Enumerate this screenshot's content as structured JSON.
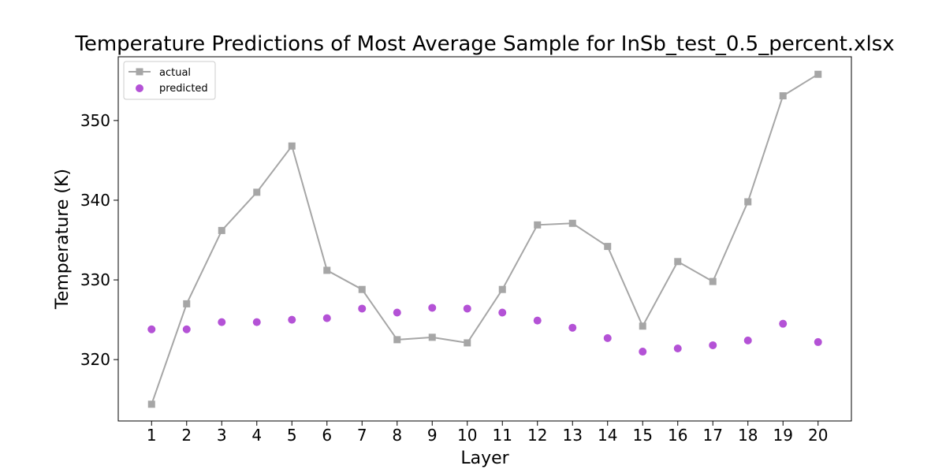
{
  "chart_data": {
    "type": "line",
    "title": "Temperature Predictions of Most Average Sample for InSb_test_0.5_percent.xlsx",
    "xlabel": "Layer",
    "ylabel": "Temperature (K)",
    "x": [
      1,
      2,
      3,
      4,
      5,
      6,
      7,
      8,
      9,
      10,
      11,
      12,
      13,
      14,
      15,
      16,
      17,
      18,
      19,
      20
    ],
    "xticks": [
      "1",
      "2",
      "3",
      "4",
      "5",
      "6",
      "7",
      "8",
      "9",
      "10",
      "11",
      "12",
      "13",
      "14",
      "15",
      "16",
      "17",
      "18",
      "19",
      "20"
    ],
    "yticks": [
      320,
      330,
      340,
      350
    ],
    "xlim": [
      0.05,
      20.95
    ],
    "ylim": [
      312.3,
      358.0
    ],
    "grid": false,
    "legend_position": "top-left",
    "series": [
      {
        "name": "actual",
        "style": "line-square",
        "color": "#a6a6a6",
        "values": [
          314.4,
          327.0,
          336.2,
          341.0,
          346.8,
          331.2,
          328.8,
          322.5,
          322.8,
          322.1,
          328.8,
          336.9,
          337.1,
          334.2,
          324.2,
          332.3,
          329.8,
          339.8,
          353.1,
          355.8
        ]
      },
      {
        "name": "predicted",
        "style": "scatter-circle",
        "color": "#b452d6",
        "values": [
          323.8,
          323.8,
          324.7,
          324.7,
          325.0,
          325.2,
          326.4,
          325.9,
          326.5,
          326.4,
          325.9,
          324.9,
          324.0,
          322.7,
          321.0,
          321.4,
          321.8,
          322.4,
          324.5,
          322.2
        ]
      }
    ]
  }
}
